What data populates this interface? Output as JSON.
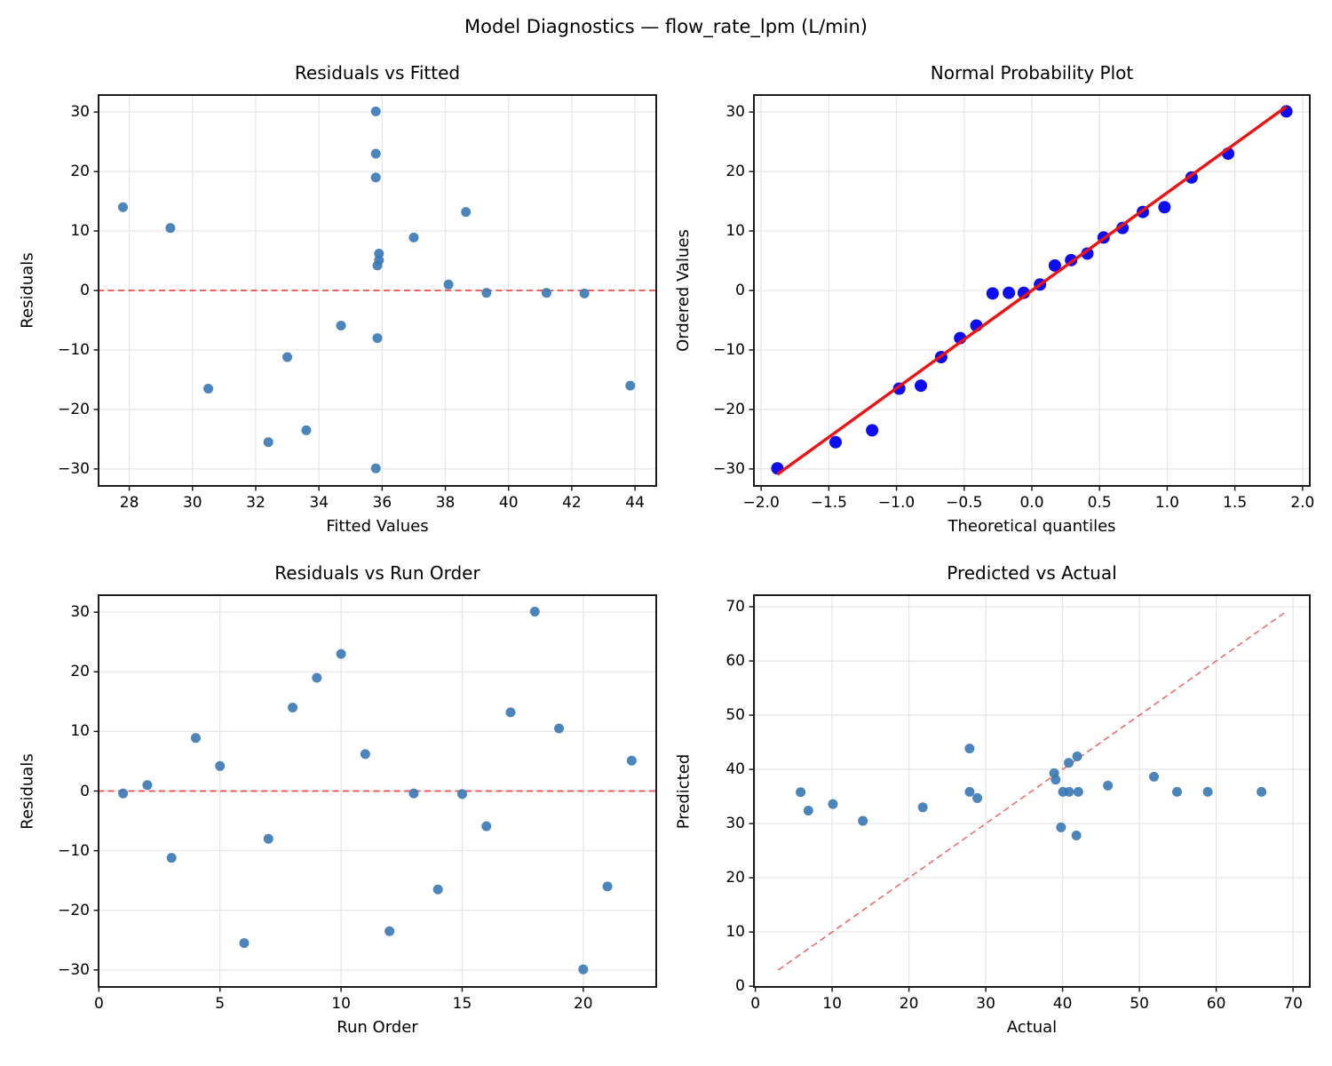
{
  "figure": {
    "suptitle": "Model Diagnostics — flow_rate_lpm (L/min)"
  },
  "colors": {
    "scatter": "#3878b4",
    "qq_point": "#0d0df2",
    "qq_line": "#ee1111",
    "zero_line": "#f24c4c",
    "diag_line": "#f56b6b",
    "grid": "#e6e6e6",
    "spine": "#1c1c1c"
  },
  "chart_data": [
    {
      "id": "residuals-vs-fitted",
      "type": "scatter",
      "title": "Residuals vs Fitted",
      "xlabel": "Fitted Values",
      "ylabel": "Residuals",
      "xlim": [
        27.0,
        44.7
      ],
      "ylim": [
        -33,
        33
      ],
      "grid": true,
      "xticks": {
        "values": [
          28,
          30,
          32,
          34,
          36,
          38,
          40,
          42,
          44
        ],
        "labels": [
          "28",
          "30",
          "32",
          "34",
          "36",
          "38",
          "40",
          "42",
          "44"
        ]
      },
      "yticks": {
        "values": [
          -30,
          -20,
          -10,
          0,
          10,
          20,
          30
        ],
        "labels": [
          "−30",
          "−20",
          "−10",
          "0",
          "10",
          "20",
          "30"
        ]
      },
      "marker": {
        "r": 5.5,
        "color": "scatter",
        "opacity": 0.9
      },
      "points": [
        [
          27.8,
          14.0
        ],
        [
          29.3,
          10.5
        ],
        [
          30.5,
          -16.5
        ],
        [
          32.4,
          -25.5
        ],
        [
          33.0,
          -11.2
        ],
        [
          33.6,
          -23.5
        ],
        [
          34.7,
          -5.9
        ],
        [
          35.8,
          30.1
        ],
        [
          35.8,
          23.0
        ],
        [
          35.8,
          19.0
        ],
        [
          35.9,
          6.2
        ],
        [
          35.9,
          5.1
        ],
        [
          35.85,
          4.2
        ],
        [
          35.85,
          -8.0
        ],
        [
          35.8,
          -29.9
        ],
        [
          37.0,
          8.9
        ],
        [
          38.1,
          1.0
        ],
        [
          38.65,
          13.2
        ],
        [
          39.3,
          -0.4
        ],
        [
          41.2,
          -0.4
        ],
        [
          42.4,
          -0.5
        ],
        [
          43.85,
          -16.0
        ]
      ],
      "lines": [
        {
          "name": "zero-line",
          "style": "dashed",
          "color": "zero_line",
          "width": 1.7,
          "above_points": false,
          "x1": 27.0,
          "y1": 0,
          "x2": 44.7,
          "y2": 0
        }
      ]
    },
    {
      "id": "normal-probability-plot",
      "type": "scatter",
      "title": "Normal Probability Plot",
      "xlabel": "Theoretical quantiles",
      "ylabel": "Ordered Values",
      "xlim": [
        -2.06,
        2.06
      ],
      "ylim": [
        -33,
        33
      ],
      "grid": true,
      "xticks": {
        "values": [
          -2.0,
          -1.5,
          -1.0,
          -0.5,
          0.0,
          0.5,
          1.0,
          1.5,
          2.0
        ],
        "labels": [
          "−2.0",
          "−1.5",
          "−1.0",
          "−0.5",
          "0.0",
          "0.5",
          "1.0",
          "1.5",
          "2.0"
        ]
      },
      "yticks": {
        "values": [
          -30,
          -20,
          -10,
          0,
          10,
          20,
          30
        ],
        "labels": [
          "−30",
          "−20",
          "−10",
          "0",
          "10",
          "20",
          "30"
        ]
      },
      "marker": {
        "r": 7,
        "color": "qq_point",
        "opacity": 1
      },
      "points": [
        [
          -1.88,
          -29.9
        ],
        [
          -1.45,
          -25.5
        ],
        [
          -1.18,
          -23.5
        ],
        [
          -0.98,
          -16.5
        ],
        [
          -0.82,
          -16.0
        ],
        [
          -0.67,
          -11.2
        ],
        [
          -0.53,
          -8.0
        ],
        [
          -0.41,
          -5.9
        ],
        [
          -0.29,
          -0.5
        ],
        [
          -0.17,
          -0.4
        ],
        [
          -0.06,
          -0.4
        ],
        [
          0.06,
          1.0
        ],
        [
          0.17,
          4.2
        ],
        [
          0.29,
          5.1
        ],
        [
          0.41,
          6.2
        ],
        [
          0.53,
          8.9
        ],
        [
          0.67,
          10.5
        ],
        [
          0.82,
          13.2
        ],
        [
          0.98,
          14.0
        ],
        [
          1.18,
          19.0
        ],
        [
          1.45,
          23.0
        ],
        [
          1.88,
          30.1
        ]
      ],
      "lines": [
        {
          "name": "fit-line",
          "style": "solid",
          "color": "qq_line",
          "width": 3.4,
          "above_points": true,
          "x1": -1.88,
          "y1": -30.9,
          "x2": 1.88,
          "y2": 30.9
        }
      ]
    },
    {
      "id": "residuals-vs-run-order",
      "type": "scatter",
      "title": "Residuals vs Run Order",
      "xlabel": "Run Order",
      "ylabel": "Residuals",
      "xlim": [
        -0.05,
        23.05
      ],
      "ylim": [
        -33,
        33
      ],
      "grid": true,
      "xticks": {
        "values": [
          0,
          5,
          10,
          15,
          20
        ],
        "labels": [
          "0",
          "5",
          "10",
          "15",
          "20"
        ]
      },
      "yticks": {
        "values": [
          -30,
          -20,
          -10,
          0,
          10,
          20,
          30
        ],
        "labels": [
          "−30",
          "−20",
          "−10",
          "0",
          "10",
          "20",
          "30"
        ]
      },
      "marker": {
        "r": 5.5,
        "color": "scatter",
        "opacity": 0.9
      },
      "points": [
        [
          1,
          -0.4
        ],
        [
          2,
          1.0
        ],
        [
          3,
          -11.2
        ],
        [
          4,
          8.9
        ],
        [
          5,
          4.2
        ],
        [
          6,
          -25.5
        ],
        [
          7,
          -8.0
        ],
        [
          8,
          14.0
        ],
        [
          9,
          19.0
        ],
        [
          10,
          23.0
        ],
        [
          11,
          6.2
        ],
        [
          12,
          -23.5
        ],
        [
          13,
          -0.4
        ],
        [
          14,
          -16.5
        ],
        [
          15,
          -0.5
        ],
        [
          16,
          -5.9
        ],
        [
          17,
          13.2
        ],
        [
          18,
          30.1
        ],
        [
          19,
          10.5
        ],
        [
          20,
          -29.9
        ],
        [
          21,
          -16.0
        ],
        [
          22,
          5.1
        ]
      ],
      "lines": [
        {
          "name": "zero-line",
          "style": "dashed",
          "color": "zero_line",
          "width": 1.7,
          "above_points": false,
          "x1": -0.05,
          "y1": 0,
          "x2": 23.05,
          "y2": 0
        }
      ]
    },
    {
      "id": "predicted-vs-actual",
      "type": "scatter",
      "title": "Predicted vs Actual",
      "xlabel": "Actual",
      "ylabel": "Predicted",
      "xlim": [
        -0.3,
        72.3
      ],
      "ylim": [
        -0.3,
        72.3
      ],
      "grid": true,
      "xticks": {
        "values": [
          0,
          10,
          20,
          30,
          40,
          50,
          60,
          70
        ],
        "labels": [
          "0",
          "10",
          "20",
          "30",
          "40",
          "50",
          "60",
          "70"
        ]
      },
      "yticks": {
        "values": [
          0,
          10,
          20,
          30,
          40,
          50,
          60,
          70
        ],
        "labels": [
          "0",
          "10",
          "20",
          "30",
          "40",
          "50",
          "60",
          "70"
        ]
      },
      "marker": {
        "r": 5.5,
        "color": "scatter",
        "opacity": 0.9
      },
      "points": [
        [
          5.9,
          35.8
        ],
        [
          6.9,
          32.4
        ],
        [
          10.1,
          33.6
        ],
        [
          14.0,
          30.5
        ],
        [
          21.8,
          33.0
        ],
        [
          27.9,
          43.85
        ],
        [
          27.9,
          35.85
        ],
        [
          28.9,
          34.7
        ],
        [
          38.9,
          39.3
        ],
        [
          39.1,
          38.1
        ],
        [
          40.05,
          35.85
        ],
        [
          40.85,
          35.85
        ],
        [
          42.05,
          35.85
        ],
        [
          40.8,
          41.2
        ],
        [
          41.9,
          42.4
        ],
        [
          39.8,
          29.3
        ],
        [
          41.8,
          27.8
        ],
        [
          45.9,
          37.0
        ],
        [
          51.9,
          38.65
        ],
        [
          54.9,
          35.85
        ],
        [
          58.9,
          35.85
        ],
        [
          65.9,
          35.85
        ]
      ],
      "lines": [
        {
          "name": "identity-line",
          "style": "dashed",
          "color": "diag_line",
          "width": 1.6,
          "above_points": false,
          "x1": 3,
          "y1": 3,
          "x2": 69,
          "y2": 69
        }
      ]
    }
  ]
}
